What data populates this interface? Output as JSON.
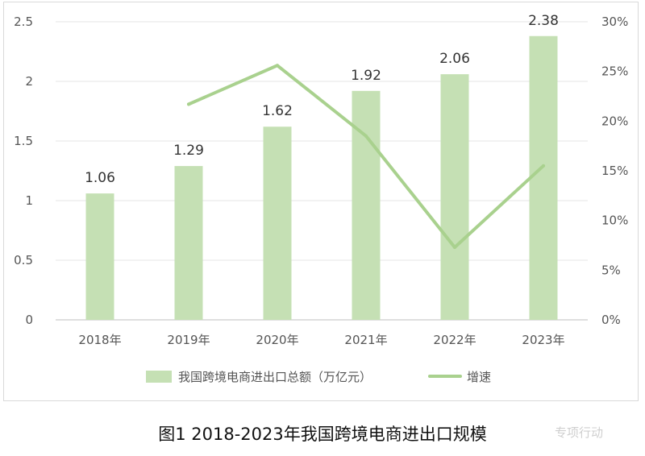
{
  "chart_data": {
    "type": "bar+line",
    "categories": [
      "2018年",
      "2019年",
      "2020年",
      "2021年",
      "2022年",
      "2023年"
    ],
    "series": [
      {
        "name": "我国跨境电商进出口总额（万亿元）",
        "type": "bar",
        "axis": "left",
        "values": [
          1.06,
          1.29,
          1.62,
          1.92,
          2.06,
          2.38
        ],
        "data_labels": [
          "1.06",
          "1.29",
          "1.62",
          "1.92",
          "2.06",
          "2.38"
        ],
        "color": "#c5e0b4"
      },
      {
        "name": "增速",
        "type": "line",
        "axis": "right",
        "values": [
          null,
          0.217,
          0.256,
          0.185,
          0.073,
          0.155
        ],
        "color": "#a9d18e"
      }
    ],
    "y_left": {
      "ylim": [
        0,
        2.5
      ],
      "ticks": [
        "0",
        "0.5",
        "1",
        "1.5",
        "2",
        "2.5"
      ]
    },
    "y_right": {
      "ylim": [
        0,
        0.3
      ],
      "ticks": [
        "0%",
        "5%",
        "10%",
        "15%",
        "20%",
        "25%",
        "30%"
      ]
    },
    "grid": true,
    "legend_position": "bottom"
  },
  "caption": "图1 2018-2023年我国跨境电商进出口规模",
  "watermark": "专项行动"
}
